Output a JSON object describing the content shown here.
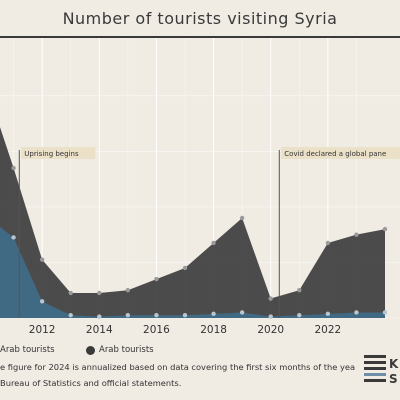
{
  "title": "Number of tourists visiting Syria",
  "legend": {
    "non_arab": "Arab tourists",
    "arab": "Arab tourists"
  },
  "note": "e figure for 2024 is annualized based on data covering the first six months of the year.",
  "source": "Bureau of Statistics and official statements.",
  "logo": {
    "text": "K S"
  },
  "colors": {
    "background": "#f0ebe3",
    "total_area": "#424242",
    "arab_area": "#3f6d8a",
    "annotation_line": "#555555",
    "annotation_bg": "#ebe0c8",
    "grid": "#ffffff"
  },
  "chart_data": {
    "type": "area",
    "x": [
      2010,
      2011,
      2012,
      2013,
      2014,
      2015,
      2016,
      2017,
      2018,
      2019,
      2020,
      2021,
      2022,
      2023,
      2024
    ],
    "xlim": [
      2010,
      2024
    ],
    "ylim": [
      0,
      9
    ],
    "xticks": [
      2012,
      2014,
      2016,
      2018,
      2020,
      2022
    ],
    "series": [
      {
        "name": "",
        "values": [
          8.5,
          5.4,
          2.1,
          0.9,
          0.9,
          1.0,
          1.4,
          1.8,
          2.7,
          3.6,
          0.7,
          1.0,
          2.7,
          3.0,
          3.2
        ]
      },
      {
        "name": "Arab tourists",
        "values": [
          3.7,
          2.9,
          0.6,
          0.1,
          0.05,
          0.1,
          0.1,
          0.1,
          0.15,
          0.2,
          0.05,
          0.1,
          0.15,
          0.2,
          0.2
        ]
      }
    ],
    "annotations": [
      {
        "x": 2011.2,
        "label": "Uprising begins"
      },
      {
        "x": 2020.3,
        "label": "Covid declared a global pane"
      }
    ]
  }
}
